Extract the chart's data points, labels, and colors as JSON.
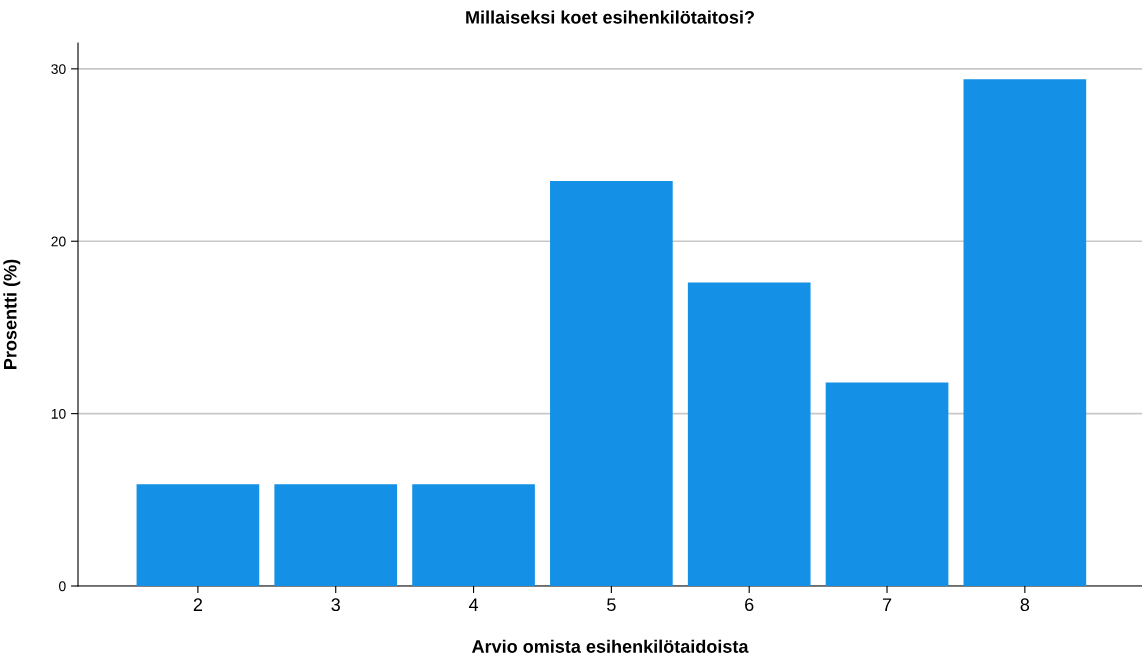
{
  "chart_data": {
    "type": "bar",
    "title": "Millaiseksi koet esihenkilötaitosi?",
    "xlabel": "Arvio omista esihenkilötaidoista",
    "ylabel": "Prosentti (%)",
    "categories": [
      "2",
      "3",
      "4",
      "5",
      "6",
      "7",
      "8"
    ],
    "values": [
      5.9,
      5.9,
      5.9,
      23.5,
      17.6,
      11.8,
      29.4
    ],
    "color": "#1490e6",
    "ylim": [
      0,
      31.5
    ],
    "yticks": [
      0,
      10,
      20,
      30
    ],
    "grid": "y"
  }
}
